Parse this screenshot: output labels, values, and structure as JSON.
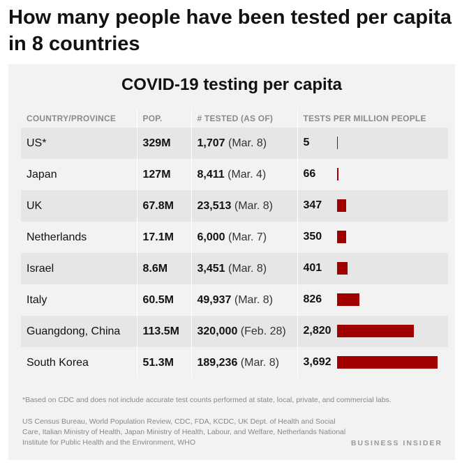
{
  "headline": "How many people have been tested per capita in 8 countries",
  "chart_data": {
    "type": "table",
    "title": "COVID-19 testing per capita",
    "columns": [
      "COUNTRY/PROVINCE",
      "POP.",
      "# TESTED (AS OF)",
      "TESTS PER MILLION PEOPLE"
    ],
    "rows": [
      {
        "country": "US*",
        "pop": "329M",
        "tested": "1,707",
        "as_of": "(Mar. 8)",
        "tpm_label": "5",
        "tpm": 5
      },
      {
        "country": "Japan",
        "pop": "127M",
        "tested": "8,411",
        "as_of": "(Mar. 4)",
        "tpm_label": "66",
        "tpm": 66
      },
      {
        "country": "UK",
        "pop": "67.8M",
        "tested": "23,513",
        "as_of": "(Mar. 8)",
        "tpm_label": "347",
        "tpm": 347
      },
      {
        "country": "Netherlands",
        "pop": "17.1M",
        "tested": "6,000",
        "as_of": "(Mar. 7)",
        "tpm_label": "350",
        "tpm": 350
      },
      {
        "country": "Israel",
        "pop": "8.6M",
        "tested": "3,451",
        "as_of": "(Mar. 8)",
        "tpm_label": "401",
        "tpm": 401
      },
      {
        "country": "Italy",
        "pop": "60.5M",
        "tested": "49,937",
        "as_of": "(Mar. 8)",
        "tpm_label": "826",
        "tpm": 826
      },
      {
        "country": "Guangdong, China",
        "pop": "113.5M",
        "tested": "320,000",
        "as_of": "(Feb. 28)",
        "tpm_label": "2,820",
        "tpm": 2820
      },
      {
        "country": "South Korea",
        "pop": "51.3M",
        "tested": "189,236",
        "as_of": "(Mar. 8)",
        "tpm_label": "3,692",
        "tpm": 3692
      }
    ],
    "bar_color": "#a00000"
  },
  "footnote": "*Based on CDC and does not include accurate test counts performed at state, local, private, and commercial labs.",
  "sources": "US Census Bureau, World Population Review, CDC, FDA, KCDC, UK Dept. of Health and Social Care, Italian Ministry of Health, Japan Ministry of Health, Labour, and Welfare, Netherlands National Institute for Public Health and the Environment, WHO",
  "brand": "BUSINESS INSIDER"
}
